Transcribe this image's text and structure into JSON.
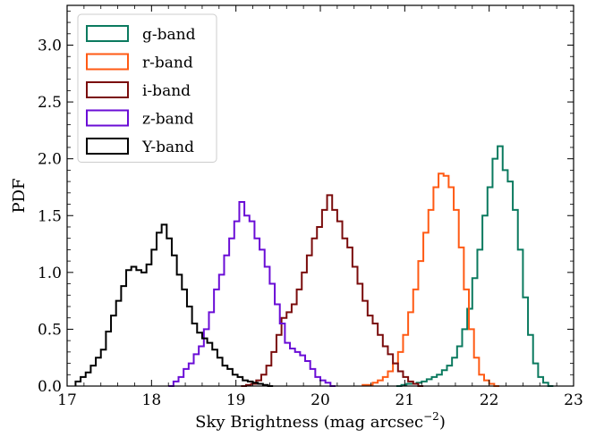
{
  "chart_data": {
    "type": "line",
    "title": "",
    "xlabel": "Sky Brightness (mag arcsec",
    "xlabel_sup": "−2",
    "xlabel_end": ")",
    "ylabel": "PDF",
    "xlim": [
      17,
      23
    ],
    "ylim": [
      0,
      3.35
    ],
    "x_ticks": [
      "17",
      "18",
      "19",
      "20",
      "21",
      "22",
      "23"
    ],
    "y_ticks": [
      "0.0",
      "0.5",
      "1.0",
      "1.5",
      "2.0",
      "2.5",
      "3.0"
    ],
    "grid": false,
    "legend_position": "top-left",
    "bin_width": 0.06,
    "series": [
      {
        "name": "g-band",
        "color": "#0b7a5f",
        "bin_start": 20.9,
        "values": [
          0.0,
          0.01,
          0.02,
          0.02,
          0.03,
          0.04,
          0.06,
          0.08,
          0.1,
          0.14,
          0.18,
          0.25,
          0.35,
          0.5,
          0.68,
          0.95,
          1.2,
          1.5,
          1.75,
          2.0,
          2.11,
          1.9,
          1.8,
          1.55,
          1.2,
          0.78,
          0.45,
          0.2,
          0.08,
          0.03,
          0.0
        ]
      },
      {
        "name": "r-band",
        "color": "#ff5a14",
        "bin_start": 20.5,
        "values": [
          0.01,
          0.01,
          0.03,
          0.05,
          0.08,
          0.13,
          0.2,
          0.3,
          0.45,
          0.65,
          0.85,
          1.1,
          1.35,
          1.55,
          1.75,
          1.87,
          1.85,
          1.75,
          1.55,
          1.22,
          0.85,
          0.5,
          0.25,
          0.1,
          0.05,
          0.02,
          0.0
        ]
      },
      {
        "name": "i-band",
        "color": "#7a0c0c",
        "bin_start": 19.06,
        "values": [
          0.0,
          0.01,
          0.02,
          0.05,
          0.1,
          0.18,
          0.3,
          0.45,
          0.6,
          0.65,
          0.72,
          0.85,
          1.0,
          1.15,
          1.3,
          1.4,
          1.55,
          1.68,
          1.55,
          1.45,
          1.3,
          1.22,
          1.05,
          0.9,
          0.75,
          0.62,
          0.55,
          0.45,
          0.35,
          0.28,
          0.2,
          0.13,
          0.08,
          0.04,
          0.02,
          0.0
        ]
      },
      {
        "name": "z-band",
        "color": "#6a0dd6",
        "bin_start": 18.2,
        "values": [
          0.0,
          0.04,
          0.08,
          0.15,
          0.2,
          0.28,
          0.35,
          0.5,
          0.65,
          0.85,
          0.98,
          1.15,
          1.3,
          1.45,
          1.62,
          1.5,
          1.45,
          1.3,
          1.2,
          1.05,
          0.9,
          0.72,
          0.55,
          0.38,
          0.33,
          0.3,
          0.27,
          0.22,
          0.15,
          0.08,
          0.05,
          0.03,
          0.0
        ]
      },
      {
        "name": "Y-band",
        "color": "#000000",
        "bin_start": 17.1,
        "values": [
          0.04,
          0.08,
          0.12,
          0.18,
          0.25,
          0.32,
          0.48,
          0.62,
          0.75,
          0.88,
          1.02,
          1.05,
          1.02,
          1.0,
          1.07,
          1.2,
          1.35,
          1.42,
          1.3,
          1.15,
          0.98,
          0.85,
          0.7,
          0.55,
          0.47,
          0.42,
          0.38,
          0.32,
          0.25,
          0.18,
          0.15,
          0.1,
          0.08,
          0.05,
          0.04,
          0.03,
          0.02,
          0.01,
          0.0
        ]
      }
    ]
  }
}
